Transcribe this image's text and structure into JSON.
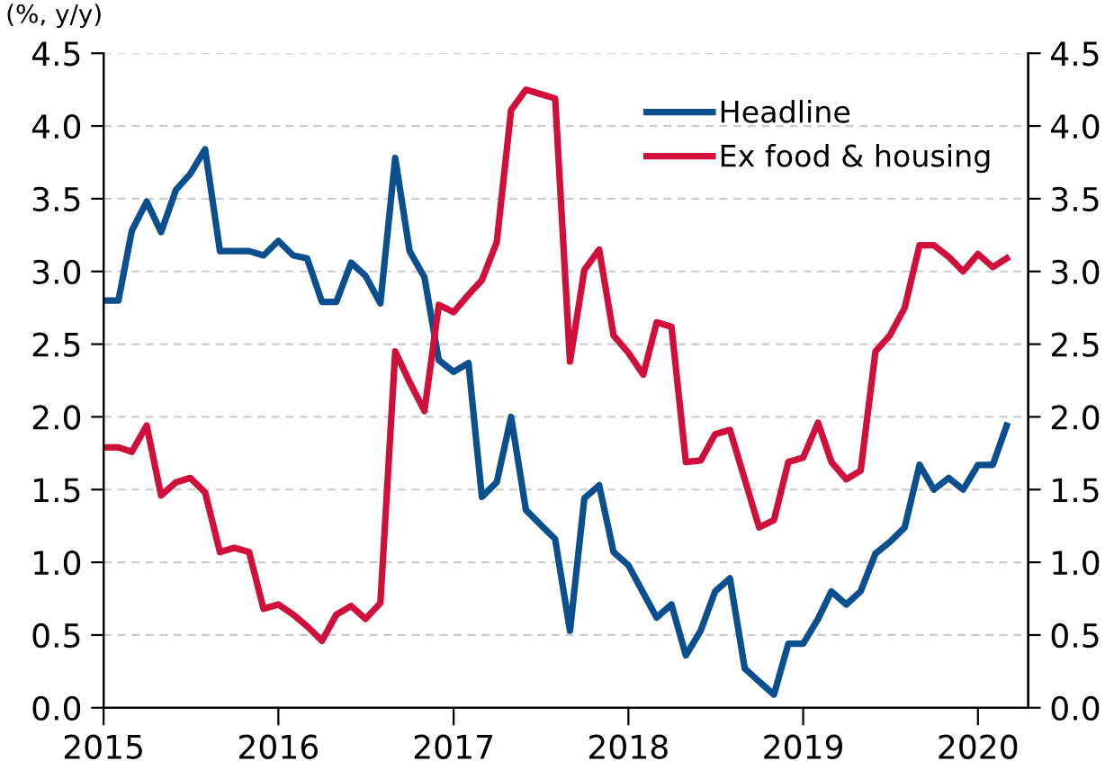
{
  "chart_data": {
    "type": "line",
    "annotations": [
      "(%, y/y)"
    ],
    "x": [
      "2015-01",
      "2015-02",
      "2015-03",
      "2015-04",
      "2015-05",
      "2015-06",
      "2015-07",
      "2015-08",
      "2015-09",
      "2015-10",
      "2015-11",
      "2015-12",
      "2016-01",
      "2016-02",
      "2016-03",
      "2016-04",
      "2016-05",
      "2016-06",
      "2016-07",
      "2016-08",
      "2016-09",
      "2016-10",
      "2016-11",
      "2016-12",
      "2017-01",
      "2017-02",
      "2017-03",
      "2017-04",
      "2017-05",
      "2017-06",
      "2017-07",
      "2017-08",
      "2017-09",
      "2017-10",
      "2017-11",
      "2017-12",
      "2018-01",
      "2018-02",
      "2018-03",
      "2018-04",
      "2018-05",
      "2018-06",
      "2018-07",
      "2018-08",
      "2018-09",
      "2018-10",
      "2018-11",
      "2018-12",
      "2019-01",
      "2019-02",
      "2019-03",
      "2019-04",
      "2019-05",
      "2019-06",
      "2019-07",
      "2019-08",
      "2019-09",
      "2019-10",
      "2019-11",
      "2019-12",
      "2020-01",
      "2020-02",
      "2020-03"
    ],
    "series": [
      {
        "name": "Headline",
        "color": "#0b4f8f",
        "values": [
          2.8,
          2.8,
          3.28,
          3.48,
          3.27,
          3.56,
          3.67,
          3.84,
          3.14,
          3.14,
          3.14,
          3.11,
          3.21,
          3.11,
          3.09,
          2.79,
          2.79,
          3.06,
          2.97,
          2.78,
          3.78,
          3.14,
          2.96,
          2.39,
          2.31,
          2.37,
          1.45,
          1.55,
          2.0,
          1.36,
          1.26,
          1.16,
          0.53,
          1.44,
          1.53,
          1.07,
          0.98,
          0.79,
          0.62,
          0.71,
          0.36,
          0.53,
          0.8,
          0.89,
          0.27,
          0.18,
          0.09,
          0.44,
          0.44,
          0.61,
          0.8,
          0.71,
          0.8,
          1.06,
          1.14,
          1.24,
          1.67,
          1.5,
          1.58,
          1.5,
          1.67,
          1.67,
          1.94
        ]
      },
      {
        "name": "Ex food & housing",
        "color": "#d0103a",
        "values": [
          1.79,
          1.79,
          1.76,
          1.94,
          1.46,
          1.55,
          1.58,
          1.48,
          1.07,
          1.1,
          1.07,
          0.68,
          0.71,
          0.64,
          0.56,
          0.46,
          0.64,
          0.7,
          0.61,
          0.72,
          2.45,
          2.24,
          2.04,
          2.77,
          2.72,
          2.84,
          2.94,
          3.2,
          4.11,
          4.25,
          4.22,
          4.19,
          2.38,
          3.01,
          3.15,
          2.56,
          2.44,
          2.29,
          2.65,
          2.62,
          1.69,
          1.7,
          1.88,
          1.91,
          1.57,
          1.24,
          1.29,
          1.69,
          1.72,
          1.96,
          1.69,
          1.57,
          1.63,
          2.45,
          2.56,
          2.75,
          3.18,
          3.18,
          3.1,
          3.0,
          3.12,
          3.03,
          3.09
        ]
      }
    ],
    "xlim": [
      "2015-01",
      "2020-04-15"
    ],
    "xticks": [
      {
        "value": "2015-01",
        "label": "2015"
      },
      {
        "value": "2016-01",
        "label": "2016"
      },
      {
        "value": "2017-01",
        "label": "2017"
      },
      {
        "value": "2018-01",
        "label": "2018"
      },
      {
        "value": "2019-01",
        "label": "2019"
      },
      {
        "value": "2020-01",
        "label": "2020"
      }
    ],
    "ylim": [
      0,
      4.5
    ],
    "yticks": [
      {
        "value": 0,
        "label": "0.0"
      },
      {
        "value": 0.5,
        "label": "0.5"
      },
      {
        "value": 1,
        "label": "1.0"
      },
      {
        "value": 1.5,
        "label": "1.5"
      },
      {
        "value": 2,
        "label": "2.0"
      },
      {
        "value": 2.5,
        "label": "2.5"
      },
      {
        "value": 3,
        "label": "3.0"
      },
      {
        "value": 3.5,
        "label": "3.5"
      },
      {
        "value": 4,
        "label": "4.0"
      },
      {
        "value": 4.5,
        "label": "4.5"
      }
    ],
    "y2lim": [
      0,
      4.5
    ],
    "y2ticks": [
      {
        "value": 0,
        "label": "0.0"
      },
      {
        "value": 0.5,
        "label": "0.5"
      },
      {
        "value": 1,
        "label": "1.0"
      },
      {
        "value": 1.5,
        "label": "1.5"
      },
      {
        "value": 2,
        "label": "2.0"
      },
      {
        "value": 2.5,
        "label": "2.5"
      },
      {
        "value": 3,
        "label": "3.0"
      },
      {
        "value": 3.5,
        "label": "3.5"
      },
      {
        "value": 4,
        "label": "4.0"
      },
      {
        "value": 4.5,
        "label": "4.5"
      }
    ],
    "grid": "y",
    "legend": "top right",
    "marker": "none",
    "line_style": "solid"
  }
}
